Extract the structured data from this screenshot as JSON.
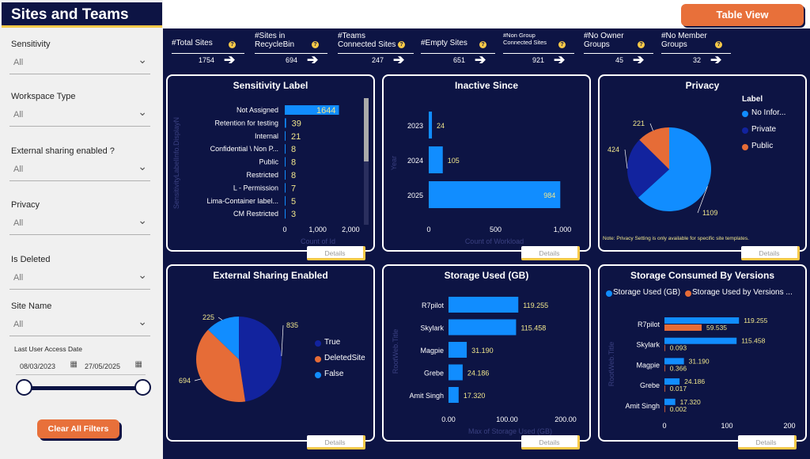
{
  "app": {
    "title": "Sites and Teams",
    "table_view_label": "Table View"
  },
  "filters": {
    "sensitivity": {
      "label": "Sensitivity",
      "value": "All"
    },
    "workspace_type": {
      "label": "Workspace Type",
      "value": "All"
    },
    "external_sharing": {
      "label": "External sharing enabled ?",
      "value": "All"
    },
    "privacy": {
      "label": "Privacy",
      "value": "All"
    },
    "is_deleted": {
      "label": "Is Deleted",
      "value": "All"
    },
    "site_name": {
      "label": "Site Name",
      "value": "All"
    },
    "last_access": {
      "label": "Last User Access Date",
      "start": "08/03/2023",
      "end": "27/05/2025"
    },
    "clear_label": "Clear All Filters"
  },
  "kpis": [
    {
      "title": "#Total Sites",
      "value": "1754"
    },
    {
      "title": "#Sites in RecycleBin",
      "value": "694"
    },
    {
      "title": "#Teams Connected Sites",
      "value": "247"
    },
    {
      "title": "#Empty Sites",
      "value": "651"
    },
    {
      "title": "#Non Group Connected Sites",
      "value": "921"
    },
    {
      "title": "#No Owner Groups",
      "value": "45"
    },
    {
      "title": "#No Member Groups",
      "value": "32"
    }
  ],
  "kpi_title_lines": [
    [
      "#Total Sites"
    ],
    [
      "#Sites in",
      "RecycleBin"
    ],
    [
      "#Teams",
      "Connected Sites"
    ],
    [
      "#Empty Sites"
    ],
    [
      "#Non Group",
      "Connected Sites"
    ],
    [
      "#No Owner",
      "Groups"
    ],
    [
      "#No Member",
      "Groups"
    ]
  ],
  "details_label": "Details",
  "colors": {
    "navy": "#0d1444",
    "blue": "#118dff",
    "dark_blue": "#12239e",
    "orange": "#e66c37",
    "yellow": "#f7c948"
  },
  "chart_data": [
    {
      "type": "bar",
      "title": "Sensitivity Label",
      "categories": [
        "Not Assigned",
        "Retention for testing",
        "Internal",
        "Confidential \\ Non P...",
        "Public",
        "Restricted",
        "L - Permission",
        "Lima-Container label...",
        "CM Restricted"
      ],
      "values": [
        1644,
        39,
        21,
        8,
        8,
        8,
        7,
        5,
        3
      ],
      "xticks": [
        "0",
        "1,000",
        "2,000"
      ],
      "xlabel": "Count of Id",
      "ylabel": "SensitivityLabelInfo.DisplayN",
      "xlim": [
        0,
        2400
      ]
    },
    {
      "type": "bar",
      "title": "Inactive Since",
      "categories": [
        "2023",
        "2024",
        "2025"
      ],
      "values": [
        24,
        105,
        984
      ],
      "xticks": [
        "0",
        "500",
        "1,000"
      ],
      "xlabel": "Count of Workload",
      "ylabel": "Year",
      "xlim": [
        0,
        1000
      ]
    },
    {
      "type": "pie",
      "title": "Privacy",
      "legend_title": "Label",
      "labels": [
        "No Infor...",
        "Private",
        "Public"
      ],
      "values": [
        1109,
        424,
        221
      ],
      "note": "Note: Privacy Setting is only available for specific site templates."
    },
    {
      "type": "pie",
      "title": "External Sharing Enabled",
      "labels": [
        "True",
        "DeletedSite",
        "False"
      ],
      "values": [
        835,
        694,
        225
      ]
    },
    {
      "type": "bar",
      "title": "Storage Used (GB)",
      "categories": [
        "R7pilot",
        "Skylark",
        "Magpie",
        "Grebe",
        "Amit Singh"
      ],
      "values": [
        119.255,
        115.458,
        31.19,
        24.186,
        17.32
      ],
      "value_labels": [
        "119.255",
        "115.458",
        "31.190",
        "24.186",
        "17.320"
      ],
      "xticks": [
        "0.00",
        "100.00",
        "200.00"
      ],
      "xlabel": "Max of Storage Used (GB)",
      "ylabel": "RootWeb.Title",
      "xlim": [
        0,
        200
      ]
    },
    {
      "type": "bar",
      "title": "Storage Consumed By Versions",
      "categories": [
        "R7pilot",
        "Skylark",
        "Magpie",
        "Grebe",
        "Amit Singh"
      ],
      "series": [
        {
          "name": "Storage Used (GB)",
          "values": [
            119.255,
            115.458,
            31.19,
            24.186,
            17.32
          ],
          "labels": [
            "119.255",
            "115.458",
            "31.190",
            "24.186",
            "17.320"
          ]
        },
        {
          "name": "Storage Used by Versions ...",
          "values": [
            59.535,
            0.093,
            0.366,
            0.017,
            0.002
          ],
          "labels": [
            "59.535",
            "0.093",
            "0.366",
            "0.017",
            "0.002"
          ]
        }
      ],
      "xticks": [
        "0",
        "100",
        "200"
      ],
      "ylabel": "RootWeb.Title",
      "xlim": [
        0,
        200
      ]
    }
  ]
}
